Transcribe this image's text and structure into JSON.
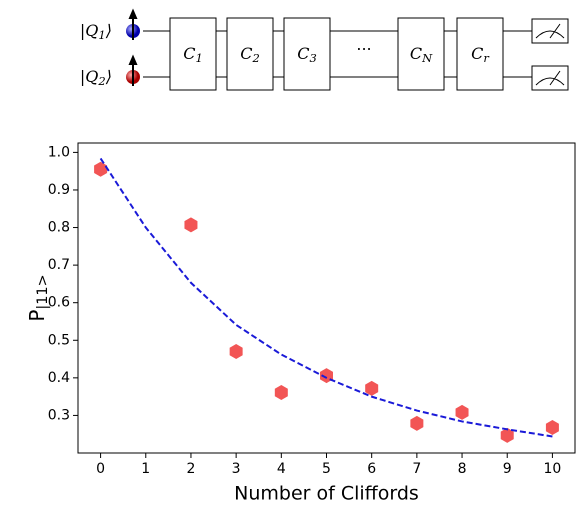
{
  "circuit": {
    "qubits": [
      {
        "base": "|Q",
        "sub": "1",
        "end": "⟩"
      },
      {
        "base": "|Q",
        "sub": "2",
        "end": "⟩"
      }
    ],
    "gates": [
      {
        "base": "C",
        "sub": "1"
      },
      {
        "base": "C",
        "sub": "2"
      },
      {
        "base": "C",
        "sub": "3"
      },
      {
        "base": "···",
        "sub": ""
      },
      {
        "base": "C",
        "sub": "N"
      },
      {
        "base": "C",
        "sub": "r"
      }
    ]
  },
  "chart_data": {
    "type": "scatter",
    "x_label": "Number of Cliffords",
    "y_label": {
      "base": "P",
      "sub": "|11>"
    },
    "x": [
      0,
      1,
      2,
      3,
      4,
      5,
      6,
      7,
      8,
      9,
      10
    ],
    "series": [
      {
        "color": "#f25555",
        "marker": "hexagon",
        "values": [
          0.955,
          null,
          0.807,
          0.47,
          0.361,
          0.406,
          0.372,
          0.279,
          0.308,
          0.247,
          0.268
        ]
      },
      {
        "color": "#1a1ad8",
        "style": "dashed",
        "values": [
          0.984,
          0.8,
          0.653,
          0.541,
          0.462,
          0.4,
          0.35,
          0.313,
          0.284,
          0.263,
          0.244
        ]
      }
    ],
    "xlim": [
      -0.5,
      10.5
    ],
    "ylim": [
      0.2,
      1.025
    ],
    "xticks": [
      0,
      1,
      2,
      3,
      4,
      5,
      6,
      7,
      8,
      9,
      10
    ],
    "yticks": [
      0.3,
      0.4,
      0.5,
      0.6,
      0.7,
      0.8,
      0.9,
      {
        "value": 1,
        "label": "1.0"
      }
    ]
  }
}
